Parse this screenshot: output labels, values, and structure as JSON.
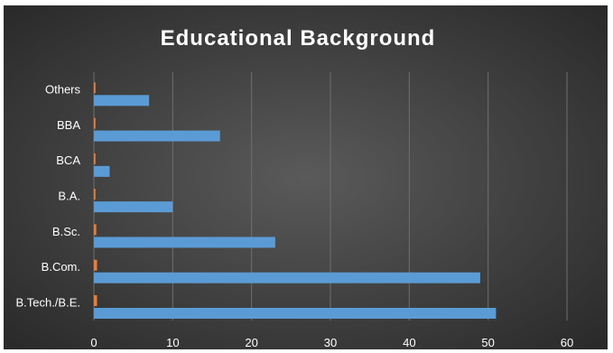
{
  "chart_data": {
    "type": "bar",
    "orientation": "horizontal",
    "title": "Educational Background",
    "xlabel": "",
    "ylabel": "",
    "categories": [
      "B.Tech./B.E.",
      "B.Com.",
      "B.Sc.",
      "B.A.",
      "BCA",
      "BBA",
      "Others"
    ],
    "series": [
      {
        "color": "#5b9bd5",
        "values": [
          51,
          49,
          23,
          10,
          2,
          16,
          7
        ]
      },
      {
        "color": "#ed7d31",
        "values": [
          0.4,
          0.4,
          0.3,
          0.2,
          0.2,
          0.2,
          0.2
        ]
      }
    ],
    "xlim": [
      0,
      60
    ],
    "xticks": [
      0,
      10,
      20,
      30,
      40,
      50,
      60
    ],
    "grid": true,
    "legend": "none",
    "colors": {
      "background_center": "#5a5a5a",
      "background_edge": "#262626",
      "text": "#ffffff",
      "gridline": "#6f6f6f"
    }
  }
}
